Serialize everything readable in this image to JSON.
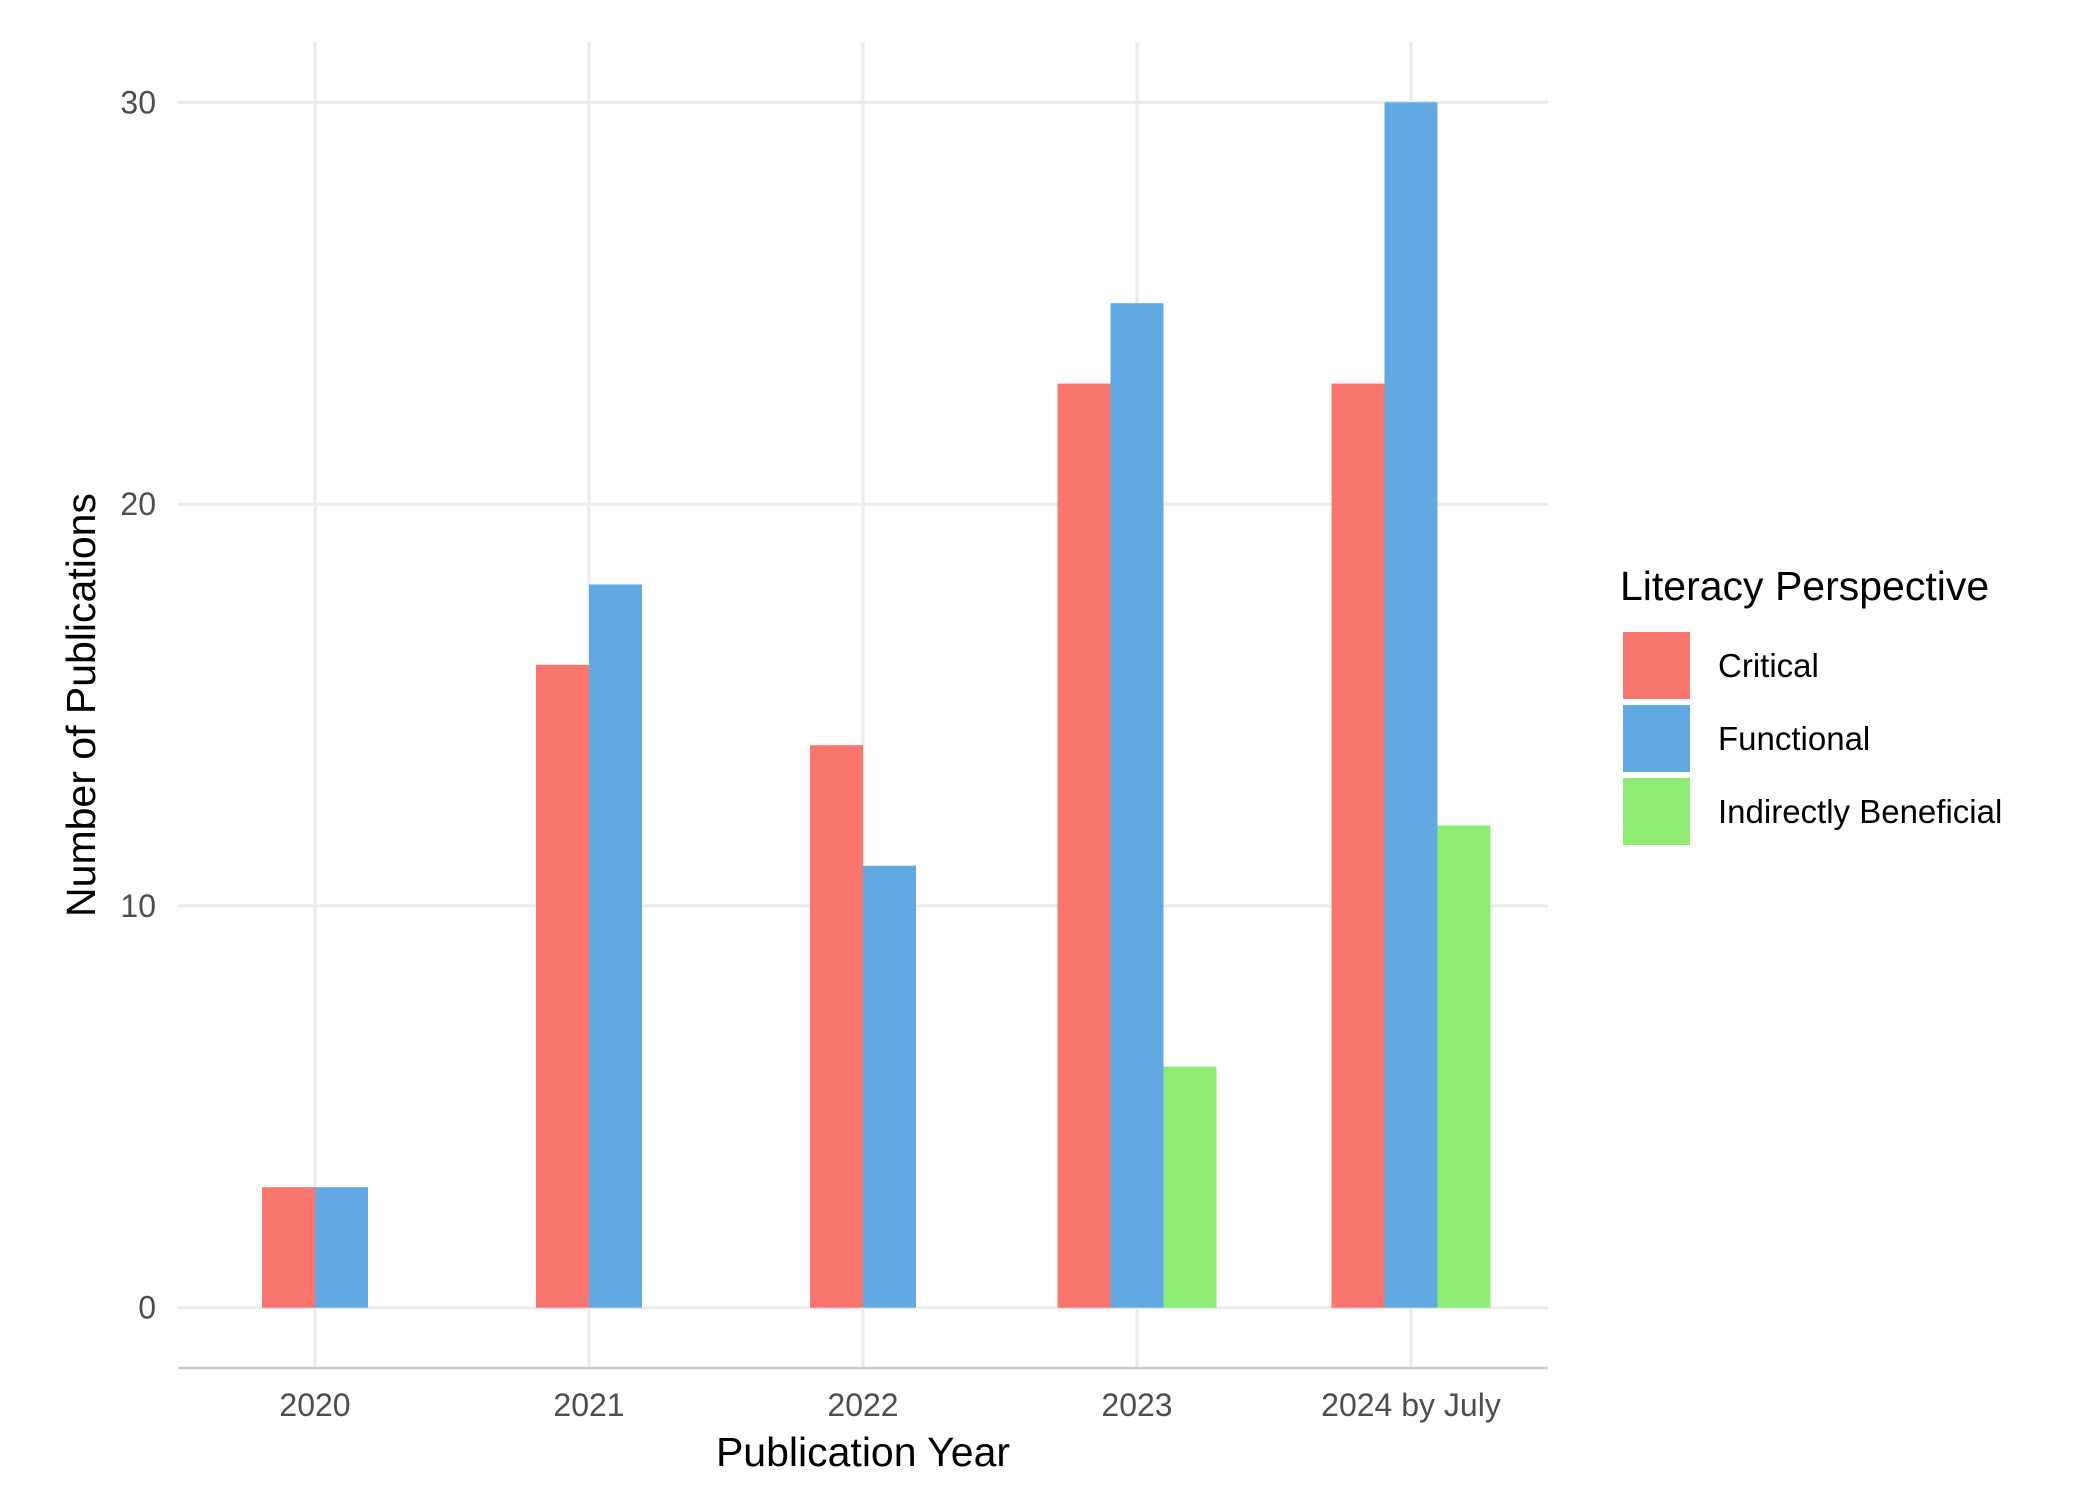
{
  "chart_data": {
    "type": "bar",
    "title": "",
    "xlabel": "Publication Year",
    "ylabel": "Number of Publications",
    "categories": [
      "2020",
      "2021",
      "2022",
      "2023",
      "2024 by July"
    ],
    "series": [
      {
        "name": "Critical",
        "color": "#F8766D",
        "values": [
          3,
          16,
          14,
          23,
          23
        ]
      },
      {
        "name": "Functional",
        "color": "#62A8E2",
        "values": [
          3,
          18,
          11,
          25,
          30
        ]
      },
      {
        "name": "Indirectly Beneficial",
        "color": "#8EEB74",
        "values": [
          0,
          0,
          0,
          6,
          12
        ]
      }
    ],
    "ylim": [
      -1.5,
      31.5
    ],
    "yticks": [
      0,
      10,
      20,
      30
    ],
    "grid": true,
    "legend": {
      "title": "Literacy Perspective",
      "position": "right"
    }
  }
}
